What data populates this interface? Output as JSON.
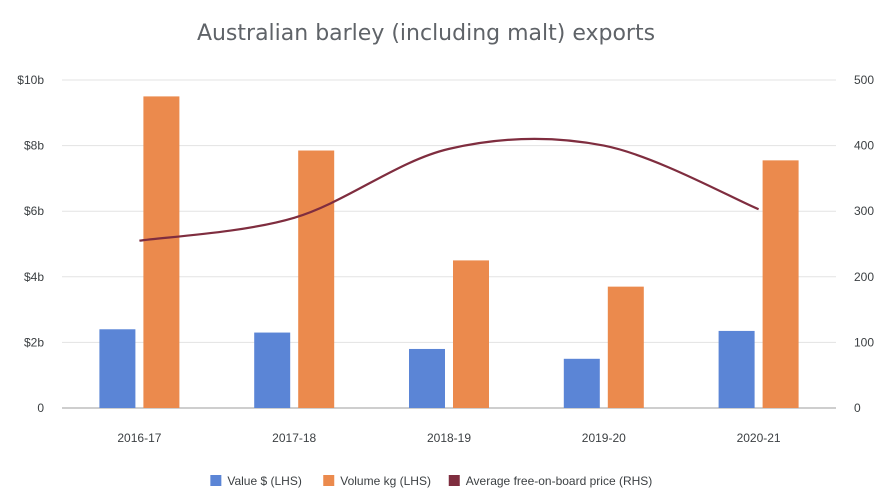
{
  "colors": {
    "value": "#5b85d6",
    "volume": "#eb8a4d",
    "price": "#7f2d3f",
    "grid": "#e3e3e3",
    "axis": "#9e9e9e",
    "title": "#5f6368",
    "text": "#3c4043"
  },
  "chart_data": {
    "type": "bar",
    "title": "Australian barley (including malt) exports",
    "categories": [
      "2016-17",
      "2017-18",
      "2018-19",
      "2019-20",
      "2020-21"
    ],
    "left_axis": {
      "ylim": [
        0,
        10
      ],
      "ticks": [
        0,
        2,
        4,
        6,
        8,
        10
      ],
      "tick_labels": [
        "0",
        "$2b",
        "$4b",
        "$6b",
        "$8b",
        "$10b"
      ]
    },
    "right_axis": {
      "ylim": [
        0,
        500
      ],
      "ticks": [
        0,
        100,
        200,
        300,
        400,
        500
      ],
      "tick_labels": [
        "0",
        "100",
        "200",
        "300",
        "400",
        "500"
      ]
    },
    "series": [
      {
        "name": "Value $ (LHS)",
        "kind": "bar",
        "axis": "left",
        "values": [
          2.4,
          2.3,
          1.8,
          1.5,
          2.35
        ]
      },
      {
        "name": "Volume kg (LHS)",
        "kind": "bar",
        "axis": "left",
        "values": [
          9.5,
          7.85,
          4.5,
          3.7,
          7.55
        ]
      },
      {
        "name": "Average free-on-board price (RHS)",
        "kind": "line",
        "axis": "right",
        "values": [
          255,
          290,
          395,
          400,
          303
        ]
      }
    ],
    "grid": true,
    "legend_position": "bottom"
  }
}
